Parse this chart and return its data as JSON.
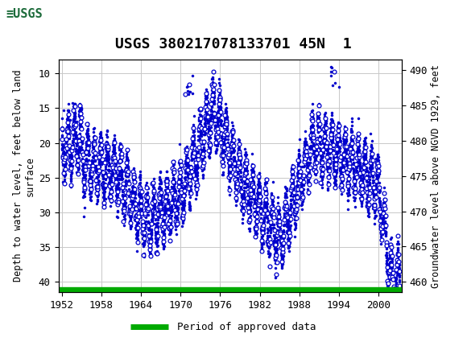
{
  "title": "USGS 380217078133701 45N  1",
  "ylabel_left": "Depth to water level, feet below land\nsurface",
  "ylabel_right": "Groundwater level above NGVD 1929, feet",
  "xlim": [
    1951.5,
    2003.5
  ],
  "ylim_left_bottom": 41.5,
  "ylim_left_top": 8.0,
  "ylim_right_bottom": 458.5,
  "ylim_right_top": 491.5,
  "left_yticks": [
    10,
    15,
    20,
    25,
    30,
    35,
    40
  ],
  "right_yticks": [
    490,
    485,
    480,
    475,
    470,
    465,
    460
  ],
  "xticks": [
    1952,
    1958,
    1964,
    1970,
    1976,
    1982,
    1988,
    1994,
    2000
  ],
  "header_bg_color": "#1c6b3a",
  "plot_bg_color": "#ffffff",
  "grid_color": "#c8c8c8",
  "data_color": "#0000cc",
  "legend_label": "Period of approved data",
  "legend_color": "#00aa00",
  "title_fontsize": 13,
  "axis_label_fontsize": 8.5,
  "tick_fontsize": 9
}
